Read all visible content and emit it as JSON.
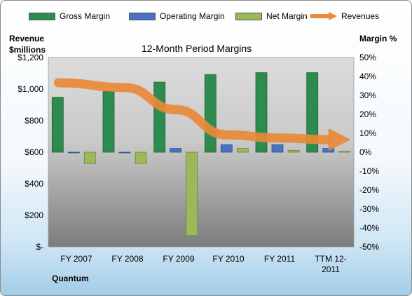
{
  "chart_data": {
    "type": "bar",
    "title": "12-Month Period Margins",
    "categories": [
      "FY 2007",
      "FY 2008",
      "FY 2009",
      "FY 2010",
      "FY 2011",
      "TTM 12-2011"
    ],
    "category_lines": [
      [
        "FY 2007"
      ],
      [
        "FY 2008"
      ],
      [
        "FY 2009"
      ],
      [
        "FY 2010"
      ],
      [
        "FY 2011"
      ],
      [
        "TTM 12-",
        "2011"
      ]
    ],
    "series": [
      {
        "name": "Gross Margin",
        "axis": "right",
        "type": "bar",
        "color": "#2e8b4f",
        "values": [
          29,
          32,
          37,
          41,
          42,
          42
        ]
      },
      {
        "name": "Operating Margin",
        "axis": "right",
        "type": "bar",
        "color": "#4a72c4",
        "values": [
          0,
          0,
          2,
          4,
          4,
          2
        ]
      },
      {
        "name": "Net Margin",
        "axis": "right",
        "type": "bar",
        "color": "#9cb85a",
        "values": [
          -6,
          -6,
          -44,
          2,
          1,
          0.5
        ]
      },
      {
        "name": "Revenues",
        "axis": "left",
        "type": "line",
        "color": "#e9893a",
        "values": [
          1040,
          1010,
          870,
          710,
          690,
          680
        ]
      }
    ],
    "ylabel_left_lines": [
      "Revenue",
      "$millions"
    ],
    "ylabel_right": "Margin %",
    "ylim_left": [
      0,
      1200
    ],
    "ylim_right": [
      -50,
      50
    ],
    "yticks_left": [
      "$-",
      "$200",
      "$400",
      "$600",
      "$800",
      "$1,000",
      "$1,200"
    ],
    "yticks_right": [
      "-50%",
      "-40%",
      "-30%",
      "-20%",
      "-10%",
      "0%",
      "10%",
      "20%",
      "30%",
      "40%",
      "50%"
    ],
    "legend_position": "top",
    "grid": false
  },
  "footer_label": "Quantum",
  "colors": {
    "gross": "#2e8b4f",
    "operating": "#4a72c4",
    "net": "#9cb85a",
    "revenue": "#e9893a"
  }
}
